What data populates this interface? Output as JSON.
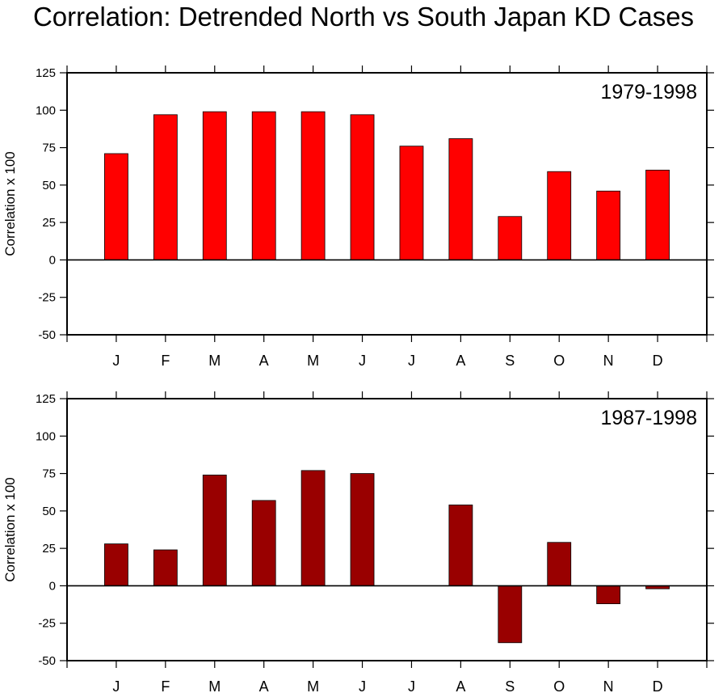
{
  "figure_title": "Correlation: Detrended North vs South Japan KD Cases",
  "chart_data": [
    {
      "type": "bar",
      "title": "1979-1998",
      "ylabel": "Correlation x 100",
      "xlabel": "",
      "categories": [
        "J",
        "F",
        "M",
        "A",
        "M",
        "J",
        "J",
        "A",
        "S",
        "O",
        "N",
        "D"
      ],
      "values": [
        71,
        97,
        99,
        99,
        99,
        97,
        76,
        81,
        29,
        59,
        46,
        60
      ],
      "ylim": [
        -50,
        125
      ],
      "yticks": [
        125,
        100,
        75,
        50,
        25,
        0,
        -25,
        -50
      ],
      "bar_color": "#ff0000",
      "grid": false
    },
    {
      "type": "bar",
      "title": "1987-1998",
      "ylabel": "Correlation x 100",
      "xlabel": "",
      "categories": [
        "J",
        "F",
        "M",
        "A",
        "M",
        "J",
        "J",
        "A",
        "S",
        "O",
        "N",
        "D"
      ],
      "values": [
        28,
        24,
        74,
        57,
        77,
        75,
        0,
        54,
        -38,
        29,
        -12,
        -2
      ],
      "ylim": [
        -50,
        125
      ],
      "yticks": [
        125,
        100,
        75,
        50,
        25,
        0,
        -25,
        -50
      ],
      "bar_color": "#990000",
      "grid": false
    }
  ]
}
